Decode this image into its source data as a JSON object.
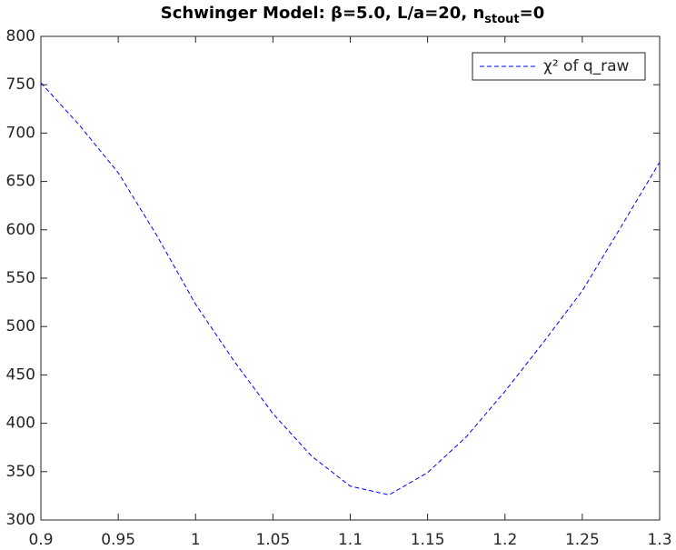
{
  "chart_data": {
    "type": "line",
    "title": [
      "Schwinger Model: β=5.0, L/a=20, n",
      "stout",
      "=0"
    ],
    "x": [
      0.9,
      0.925,
      0.95,
      0.975,
      1.0,
      1.025,
      1.05,
      1.075,
      1.1,
      1.125,
      1.15,
      1.175,
      1.2,
      1.225,
      1.25,
      1.275,
      1.3
    ],
    "series": [
      {
        "name": "χ² of q_raw",
        "color": "#0000ff",
        "line_style": "dashed",
        "values": [
          752,
          708,
          659,
          594,
          523,
          464,
          410,
          366,
          335,
          326,
          349,
          386,
          433,
          484,
          537,
          603,
          670
        ]
      }
    ],
    "xlim": [
      0.9,
      1.3
    ],
    "xticks": [
      0.9,
      0.95,
      1,
      1.05,
      1.1,
      1.15,
      1.2,
      1.25,
      1.3
    ],
    "ylim": [
      300,
      800
    ],
    "yticks": [
      300,
      350,
      400,
      450,
      500,
      550,
      600,
      650,
      700,
      750,
      800
    ],
    "grid": false,
    "legend": "top-right"
  }
}
